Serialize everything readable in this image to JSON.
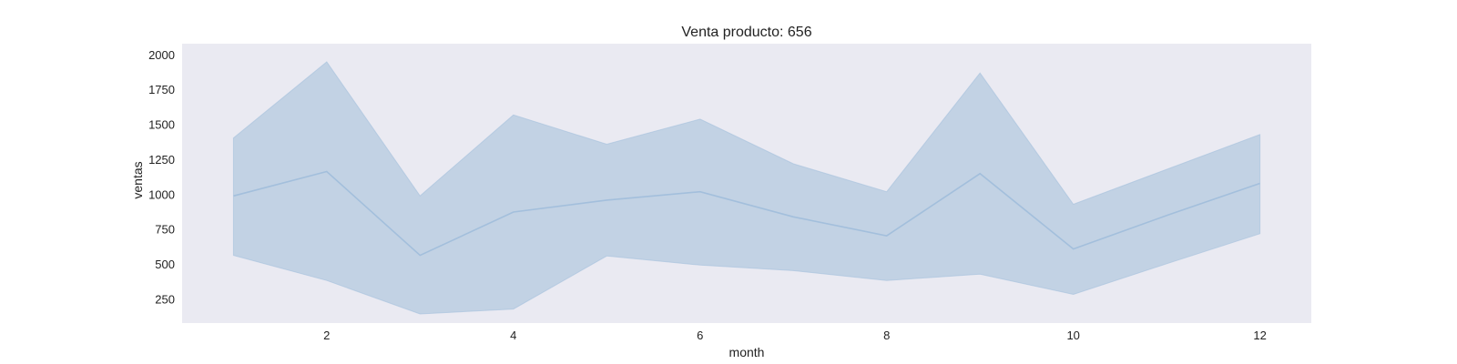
{
  "chart_data": {
    "type": "line",
    "title": "Venta producto: 656",
    "xlabel": "month",
    "ylabel": "ventas",
    "x": [
      1,
      2,
      3,
      4,
      5,
      6,
      7,
      8,
      9,
      10,
      11,
      12
    ],
    "series": [
      {
        "values": [
          990,
          1165,
          565,
          875,
          960,
          1020,
          840,
          705,
          1150,
          610,
          850,
          1080
        ],
        "band_lower": [
          565,
          385,
          145,
          180,
          560,
          495,
          455,
          385,
          430,
          285,
          505,
          720
        ],
        "band_upper": [
          1405,
          1950,
          990,
          1570,
          1360,
          1540,
          1220,
          1020,
          1870,
          930,
          1180,
          1430
        ]
      }
    ],
    "xlim": [
      0.45,
      12.55
    ],
    "ylim": [
      80,
      2080
    ],
    "xticks": [
      2,
      4,
      6,
      8,
      10,
      12
    ],
    "yticks": [
      250,
      500,
      750,
      1000,
      1250,
      1500,
      1750,
      2000
    ],
    "grid": false,
    "colors": {
      "plot_background": "#eaeaf2",
      "band_fill": "#c2d2e4",
      "line": "#a3bfdc",
      "text": "#222222"
    }
  }
}
